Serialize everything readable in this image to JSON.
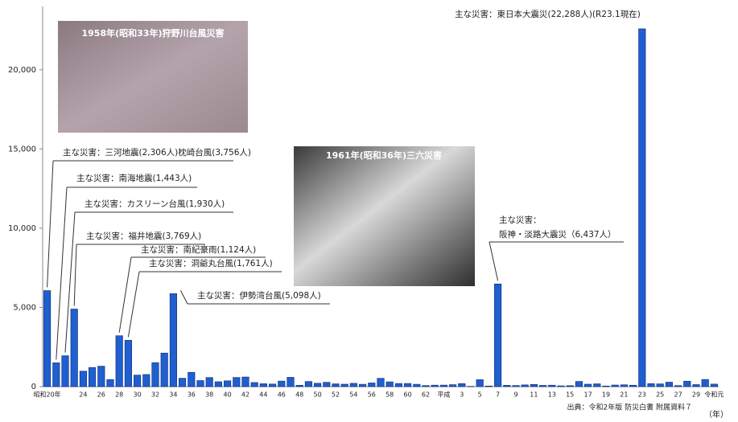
{
  "chart_data": {
    "type": "bar",
    "categories": [
      "昭和20年",
      null,
      null,
      null,
      "24",
      null,
      "26",
      null,
      "28",
      null,
      "30",
      null,
      "32",
      null,
      "34",
      null,
      "36",
      null,
      "38",
      null,
      "40",
      null,
      "42",
      null,
      "44",
      null,
      "46",
      null,
      "48",
      null,
      "50",
      null,
      "52",
      null,
      "54",
      null,
      "56",
      null,
      "58",
      null,
      "60",
      null,
      "62",
      null,
      "平成",
      null,
      "3",
      null,
      "5",
      null,
      "7",
      null,
      "9",
      null,
      "11",
      null,
      "13",
      null,
      "15",
      null,
      "17",
      null,
      "19",
      null,
      "21",
      null,
      "23",
      null,
      "25",
      null,
      "27",
      null,
      "29",
      null,
      "令和元"
    ],
    "values": [
      6062,
      1504,
      1950,
      4897,
      975,
      1210,
      1291,
      449,
      3212,
      2926,
      727,
      765,
      1515,
      2120,
      5868,
      528,
      902,
      381,
      575,
      307,
      367,
      578,
      607,
      259,
      183,
      163,
      350,
      587,
      85,
      324,
      213,
      273,
      174,
      153,
      208,
      148,
      232,
      524,
      301,
      199,
      199,
      148,
      69,
      93,
      96,
      123,
      190,
      19,
      438,
      39,
      6482,
      84,
      71,
      109,
      141,
      78,
      90,
      48,
      62,
      327,
      153,
      177,
      39,
      101,
      115,
      89,
      22585,
      190,
      173,
      280,
      65,
      344,
      129,
      452,
      159
    ],
    "color": "#1f5fd0",
    "ylim": [
      0,
      24000
    ],
    "yticks": [
      0,
      {
        "value": 5000,
        "label": "5,000"
      },
      {
        "value": 10000,
        "label": "10,000"
      },
      {
        "value": 15000,
        "label": "15,000"
      },
      {
        "value": 20000,
        "label": "20,000"
      }
    ],
    "x_label": "（年）",
    "source": "出典：令和2年版 防災白書 附属資料７",
    "photo_captions": [
      "1958年(昭和33年)狩野川台風災害",
      "1961年(昭和36年)三六災害"
    ],
    "annotations": [
      [
        "主な災害：三河地震(2,306人)枕崎台風(3,756人)"
      ],
      [
        "主な災害：南海地震(1,443人)"
      ],
      [
        "主な災害：カスリーン台風(1,930人)"
      ],
      [
        "主な災害：福井地震(3,769人)"
      ],
      [
        "主な災害：南紀豪雨(1,124人)"
      ],
      [
        "主な災害：洞爺丸台風(1,761人)"
      ],
      [
        "主な災害：伊勢湾台風(5,098人)"
      ],
      [
        "主な災害：",
        "阪神・淡路大震災（6,437人）"
      ],
      [
        "主な災害：東日本大震災(22,288人)(R23.1現在)"
      ]
    ]
  }
}
